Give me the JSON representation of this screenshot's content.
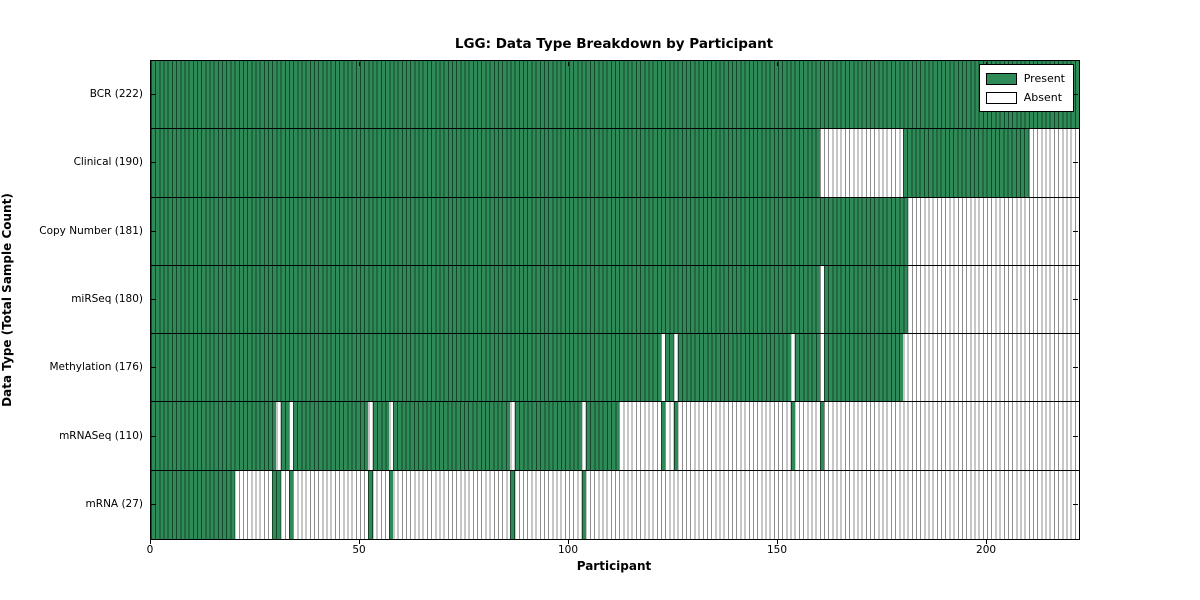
{
  "title": "LGG: Data Type Breakdown by Participant",
  "x_axis_title": "Participant",
  "y_axis_title": "Data Type (Total Sample Count)",
  "legend": {
    "present_label": "Present",
    "absent_label": "Absent"
  },
  "colors": {
    "present_fill": "#2e8b57",
    "absent_fill": "#ffffff",
    "cell_edge": "#000000",
    "axis": "#000000",
    "background": "#ffffff"
  },
  "chart_data": {
    "type": "heatmap",
    "title": "LGG: Data Type Breakdown by Participant",
    "xlabel": "Participant",
    "ylabel": "Data Type (Total Sample Count)",
    "legend_entries": [
      "Present",
      "Absent"
    ],
    "legend_position": "upper right",
    "grid": "row-separators",
    "x_range": [
      0,
      222
    ],
    "n_participants": 222,
    "x_ticks": [
      0,
      50,
      100,
      150,
      200
    ],
    "value_encoding": {
      "present": "green",
      "absent": "white"
    },
    "rows": [
      {
        "name": "BCR",
        "label": "BCR (222)",
        "total": 222,
        "present_ranges": [
          [
            0,
            222
          ]
        ]
      },
      {
        "name": "Clinical",
        "label": "Clinical (190)",
        "total": 190,
        "present_ranges": [
          [
            0,
            160
          ],
          [
            180,
            210
          ]
        ]
      },
      {
        "name": "Copy Number",
        "label": "Copy Number (181)",
        "total": 181,
        "present_ranges": [
          [
            0,
            181
          ]
        ]
      },
      {
        "name": "miRSeq",
        "label": "miRSeq (180)",
        "total": 180,
        "present_ranges": [
          [
            0,
            160
          ],
          [
            161,
            181
          ]
        ]
      },
      {
        "name": "Methylation",
        "label": "Methylation (176)",
        "total": 176,
        "present_ranges": [
          [
            0,
            122
          ],
          [
            123,
            125
          ],
          [
            126,
            153
          ],
          [
            154,
            160
          ],
          [
            161,
            180
          ]
        ]
      },
      {
        "name": "mRNASeq",
        "label": "mRNASeq (110)",
        "total": 110,
        "present_ranges": [
          [
            0,
            30
          ],
          [
            31,
            33
          ],
          [
            34,
            52
          ],
          [
            53,
            57
          ],
          [
            58,
            86
          ],
          [
            87,
            103
          ],
          [
            104,
            112
          ],
          [
            122,
            123
          ],
          [
            125,
            126
          ],
          [
            153,
            154
          ],
          [
            160,
            161
          ]
        ]
      },
      {
        "name": "mRNA",
        "label": "mRNA (27)",
        "total": 27,
        "present_ranges": [
          [
            0,
            20
          ],
          [
            29,
            31
          ],
          [
            33,
            34
          ],
          [
            52,
            53
          ],
          [
            57,
            58
          ],
          [
            86,
            87
          ],
          [
            103,
            104
          ]
        ]
      }
    ]
  }
}
